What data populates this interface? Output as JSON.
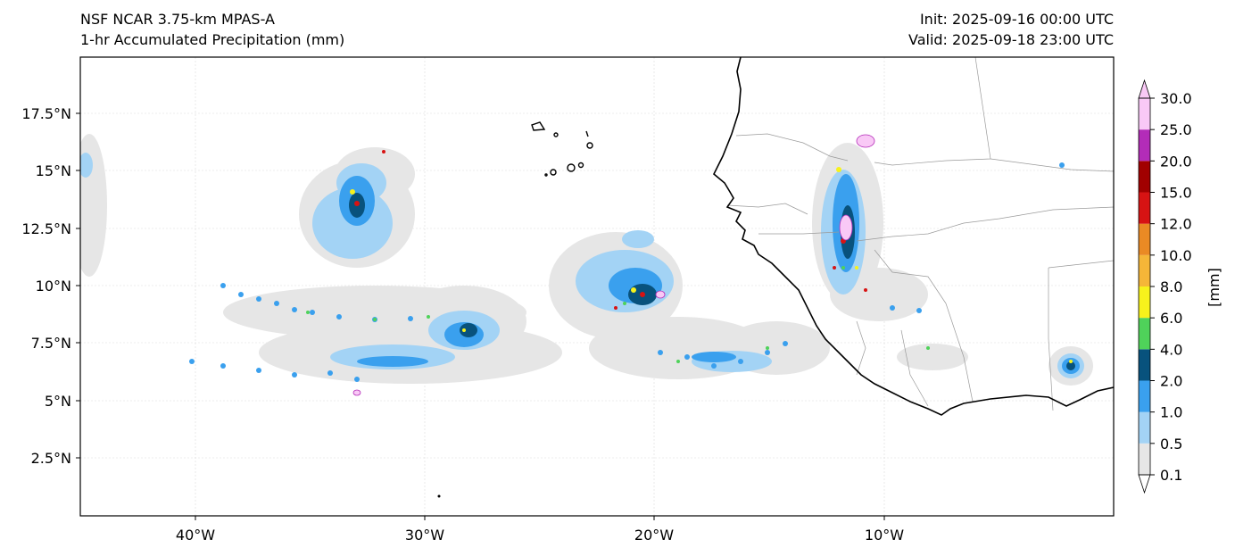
{
  "header": {
    "model": "NSF NCAR 3.75-km MPAS-A",
    "field": "1-hr Accumulated Precipitation (mm)",
    "init": "Init: 2025-09-16 00:00 UTC",
    "valid": "Valid: 2025-09-18 23:00 UTC"
  },
  "axes": {
    "lat_ticks": [
      "17.5°N",
      "15°N",
      "12.5°N",
      "10°N",
      "7.5°N",
      "5°N",
      "2.5°N"
    ],
    "lon_ticks": [
      "40°W",
      "30°W",
      "20°W",
      "10°W"
    ],
    "lon_range": [
      -45,
      0
    ],
    "lat_range": [
      0,
      20
    ]
  },
  "colorbar": {
    "unit_label": "[mm]",
    "levels": [
      "0.1",
      "0.5",
      "1.0",
      "2.0",
      "4.0",
      "6.0",
      "8.0",
      "10.0",
      "12.0",
      "15.0",
      "20.0",
      "25.0",
      "30.0"
    ],
    "colors": [
      "#e6e6e6",
      "#a3d3f5",
      "#3aa0ee",
      "#08527d",
      "#4fd25a",
      "#f7f21c",
      "#f5b638",
      "#ea8a24",
      "#d71313",
      "#a10000",
      "#b32cb8",
      "#f9c9f6"
    ]
  }
}
